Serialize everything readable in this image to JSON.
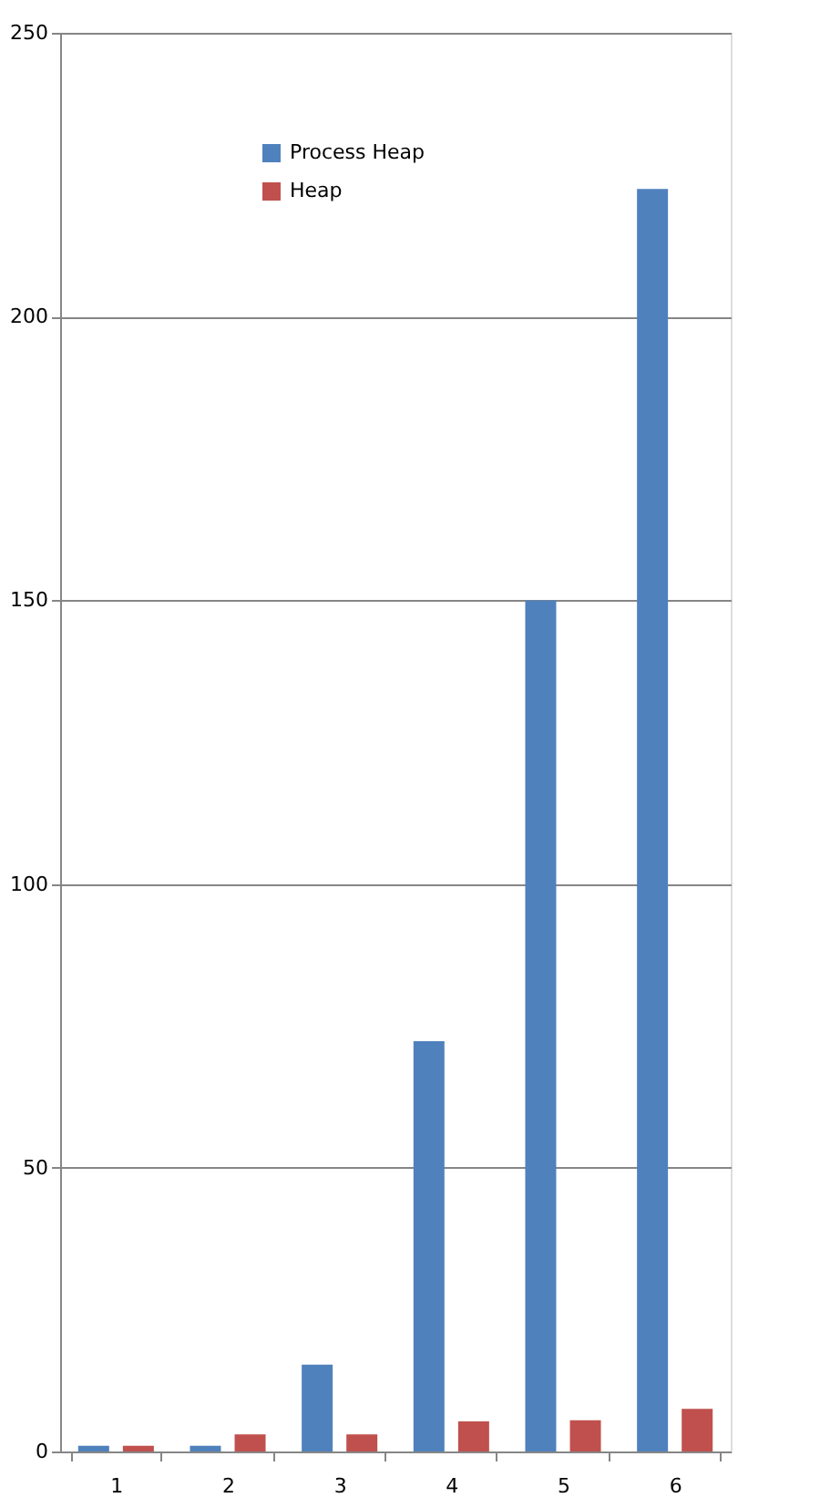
{
  "chart_data": {
    "type": "bar",
    "categories": [
      "1",
      "2",
      "3",
      "4",
      "5",
      "6"
    ],
    "series": [
      {
        "name": "Process Heap",
        "color": "#4f81bd",
        "values": [
          1,
          1,
          15.3,
          72.3,
          150,
          222.5
        ]
      },
      {
        "name": "Heap",
        "color": "#c0504d",
        "values": [
          1,
          3,
          3,
          5.3,
          5.5,
          7.5
        ]
      }
    ],
    "ylim": [
      0,
      250
    ],
    "yticks": [
      0,
      50,
      100,
      150,
      200,
      250
    ],
    "grid": "y",
    "legend": "top left"
  }
}
